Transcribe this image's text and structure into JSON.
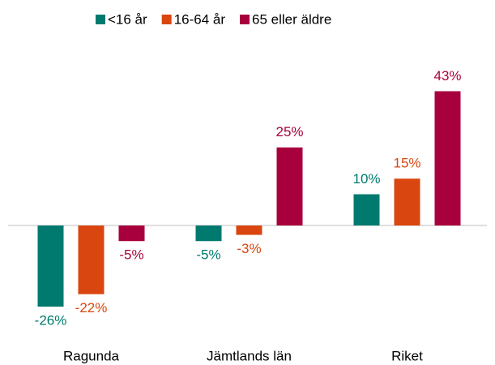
{
  "chart_data": {
    "type": "bar",
    "categories": [
      "Ragunda",
      "Jämtlands län",
      "Riket"
    ],
    "series": [
      {
        "name": "<16 år",
        "color": "#007a6e",
        "values": [
          -26,
          -5,
          10
        ],
        "value_labels": [
          "-26%",
          "-5%",
          "10%"
        ]
      },
      {
        "name": "16-64 år",
        "color": "#d9460f",
        "values": [
          -22,
          -3,
          15
        ],
        "value_labels": [
          "-22%",
          "-3%",
          "15%"
        ]
      },
      {
        "name": "65 eller äldre",
        "color": "#a8003c",
        "values": [
          -5,
          25,
          43
        ],
        "value_labels": [
          "-5%",
          "25%",
          "43%"
        ]
      }
    ],
    "ylim": [
      -30,
      50
    ],
    "legend": "top"
  }
}
